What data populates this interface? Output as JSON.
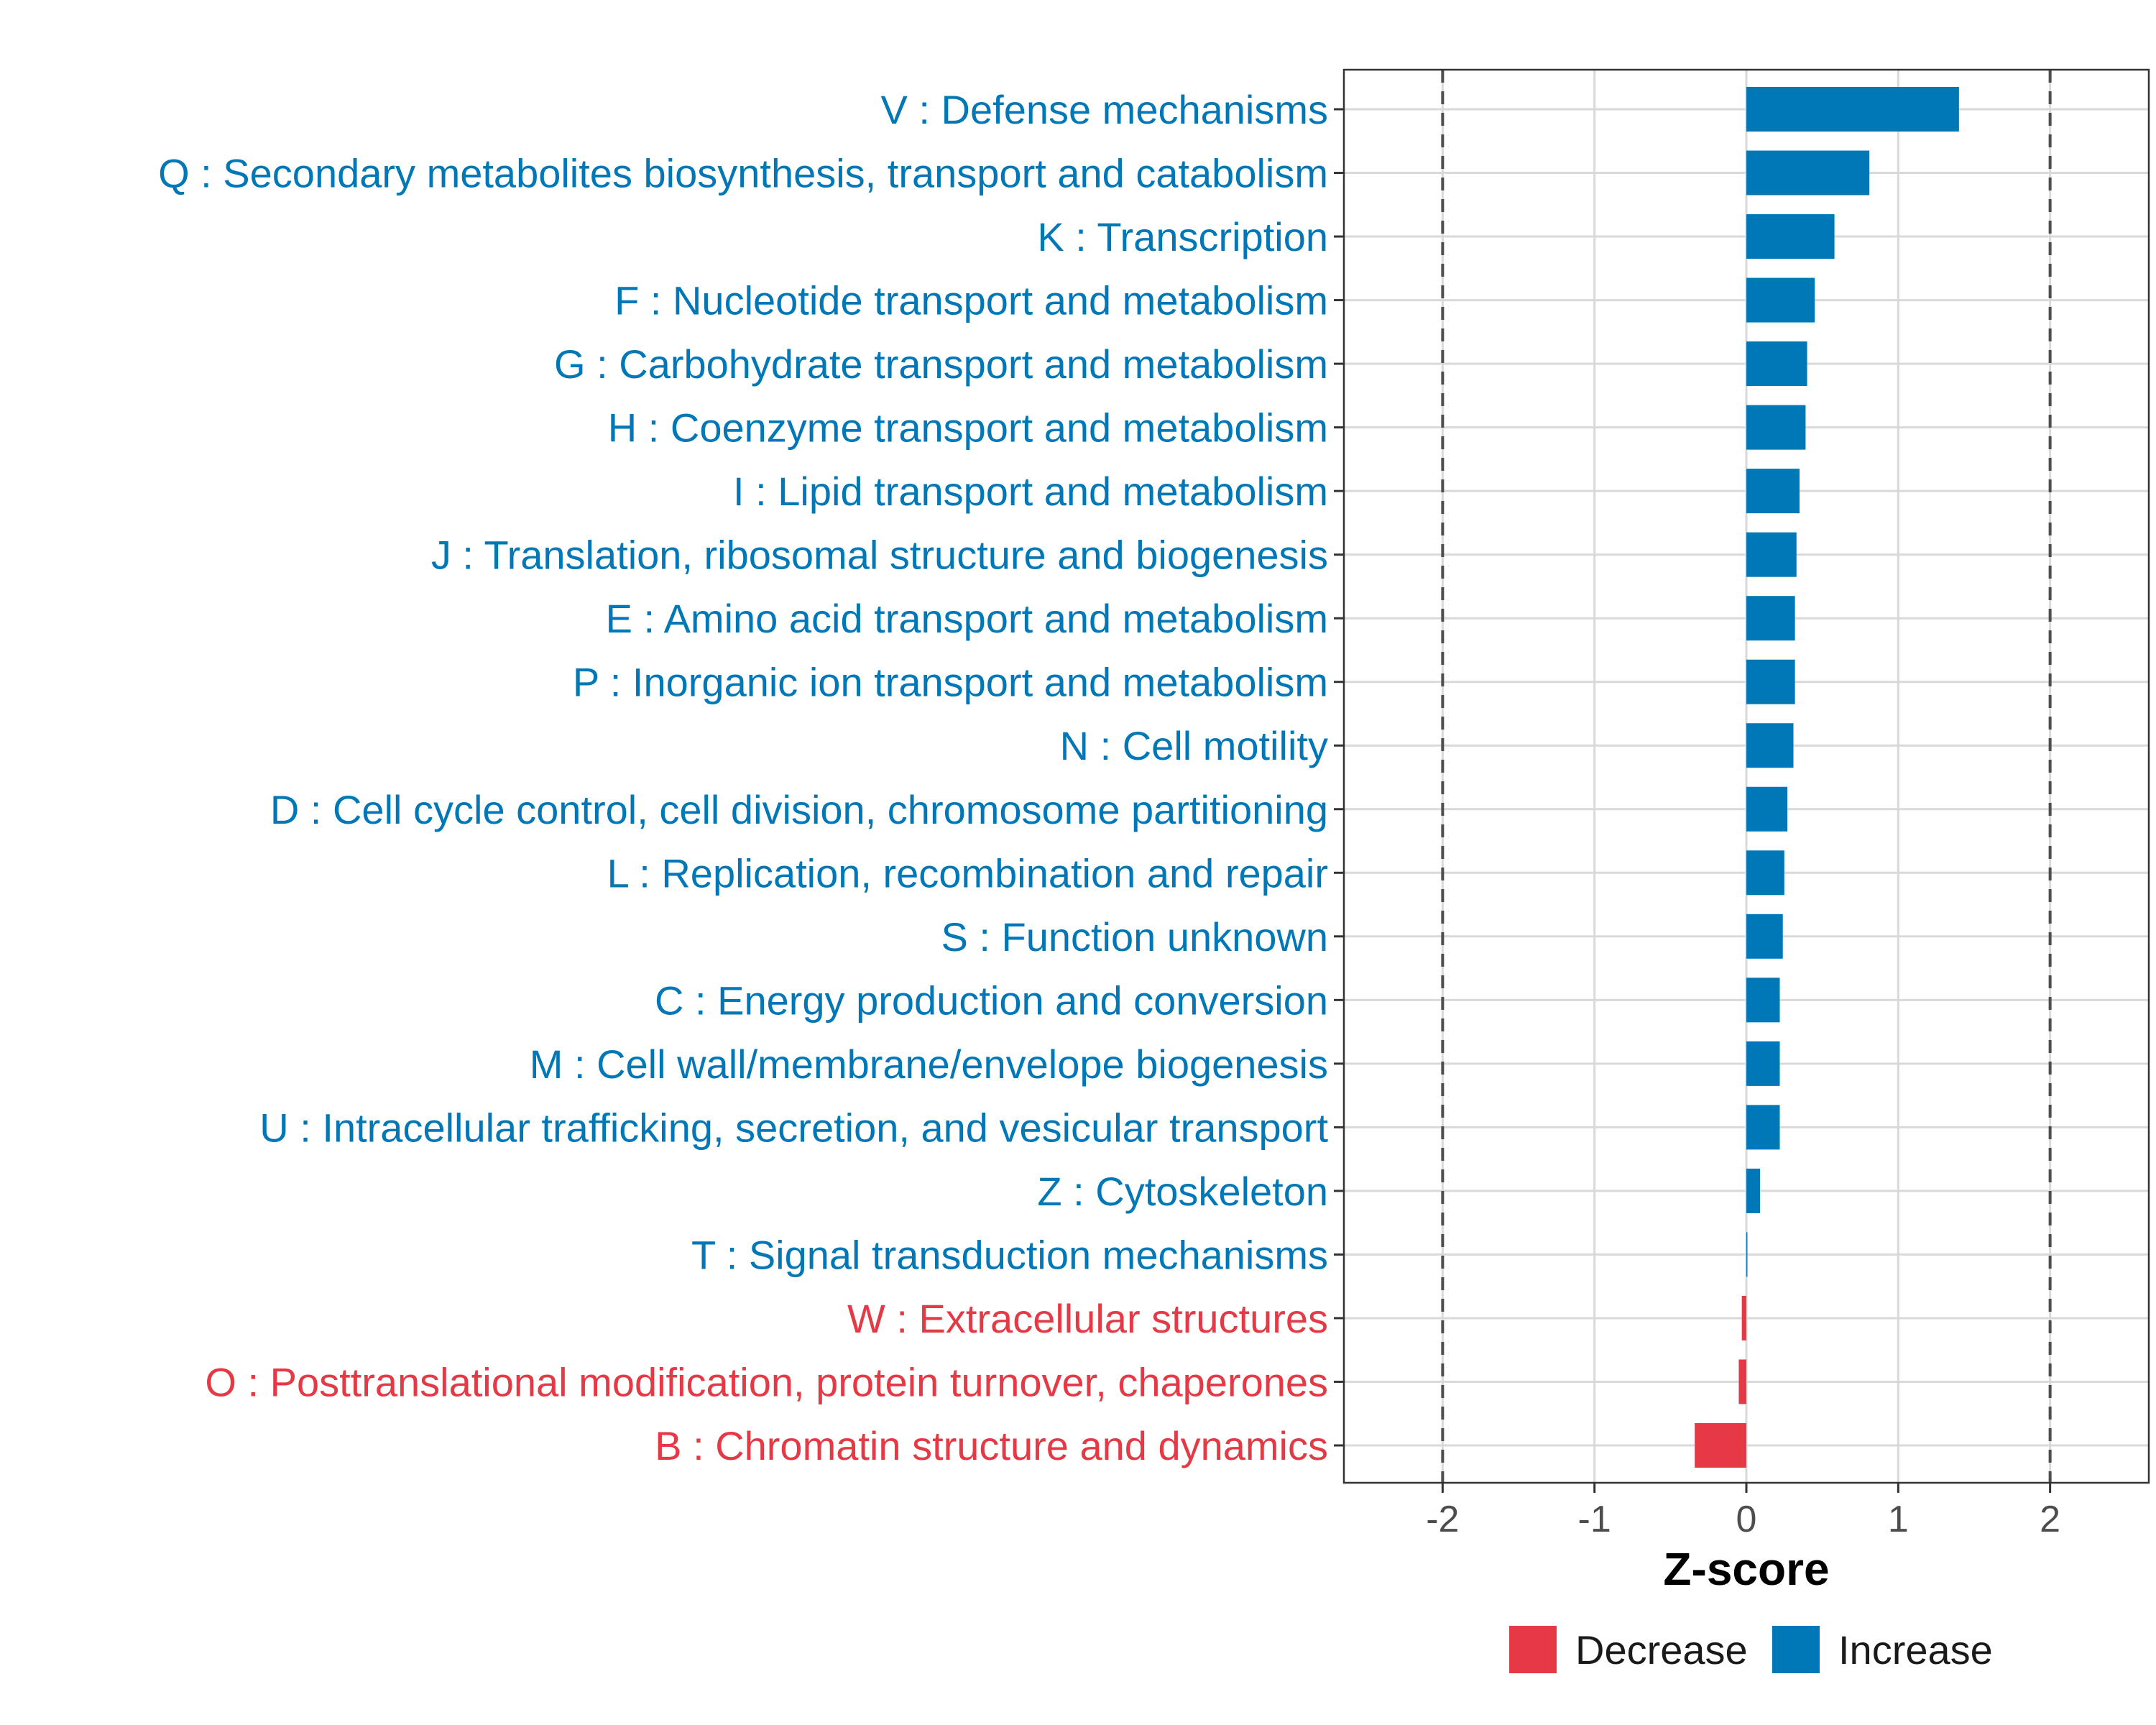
{
  "chart_data": {
    "type": "bar",
    "orientation": "horizontal",
    "xlabel": "Z-score",
    "xlim": [
      -2.65,
      2.65
    ],
    "xticks": [
      -2,
      -1,
      0,
      1,
      2
    ],
    "xtick_labels": [
      "-2",
      "-1",
      "0",
      "1",
      "2"
    ],
    "reference_lines": [
      -2,
      2
    ],
    "grid": true,
    "legend_position": "bottom",
    "colors": {
      "Decrease": "#e63946",
      "Increase": "#0077b6"
    },
    "legend": [
      {
        "name": "Decrease",
        "color": "#e63946"
      },
      {
        "name": "Increase",
        "color": "#0077b6"
      }
    ],
    "categories": [
      "V : Defense mechanisms",
      "Q : Secondary metabolites biosynthesis, transport and catabolism",
      "K : Transcription",
      "F : Nucleotide transport and metabolism",
      "G : Carbohydrate transport and metabolism",
      "H : Coenzyme transport and metabolism",
      "I : Lipid transport and metabolism",
      "J : Translation, ribosomal structure and biogenesis",
      "E : Amino acid transport and metabolism",
      "P : Inorganic ion transport and metabolism",
      "N : Cell motility",
      "D : Cell cycle control, cell division, chromosome partitioning",
      "L : Replication, recombination and repair",
      "S : Function unknown",
      "C : Energy production and conversion",
      "M : Cell wall/membrane/envelope biogenesis",
      "U : Intracellular trafficking, secretion, and vesicular transport",
      "Z : Cytoskeleton",
      "T : Signal transduction mechanisms",
      "W : Extracellular structures",
      "O : Posttranslational modification, protein turnover, chaperones",
      "B : Chromatin structure and dynamics"
    ],
    "values": [
      1.4,
      0.81,
      0.58,
      0.45,
      0.4,
      0.39,
      0.35,
      0.33,
      0.32,
      0.32,
      0.31,
      0.27,
      0.25,
      0.24,
      0.22,
      0.22,
      0.22,
      0.09,
      0.005,
      -0.03,
      -0.05,
      -0.34
    ],
    "direction": [
      "Increase",
      "Increase",
      "Increase",
      "Increase",
      "Increase",
      "Increase",
      "Increase",
      "Increase",
      "Increase",
      "Increase",
      "Increase",
      "Increase",
      "Increase",
      "Increase",
      "Increase",
      "Increase",
      "Increase",
      "Increase",
      "Increase",
      "Decrease",
      "Decrease",
      "Decrease"
    ]
  }
}
